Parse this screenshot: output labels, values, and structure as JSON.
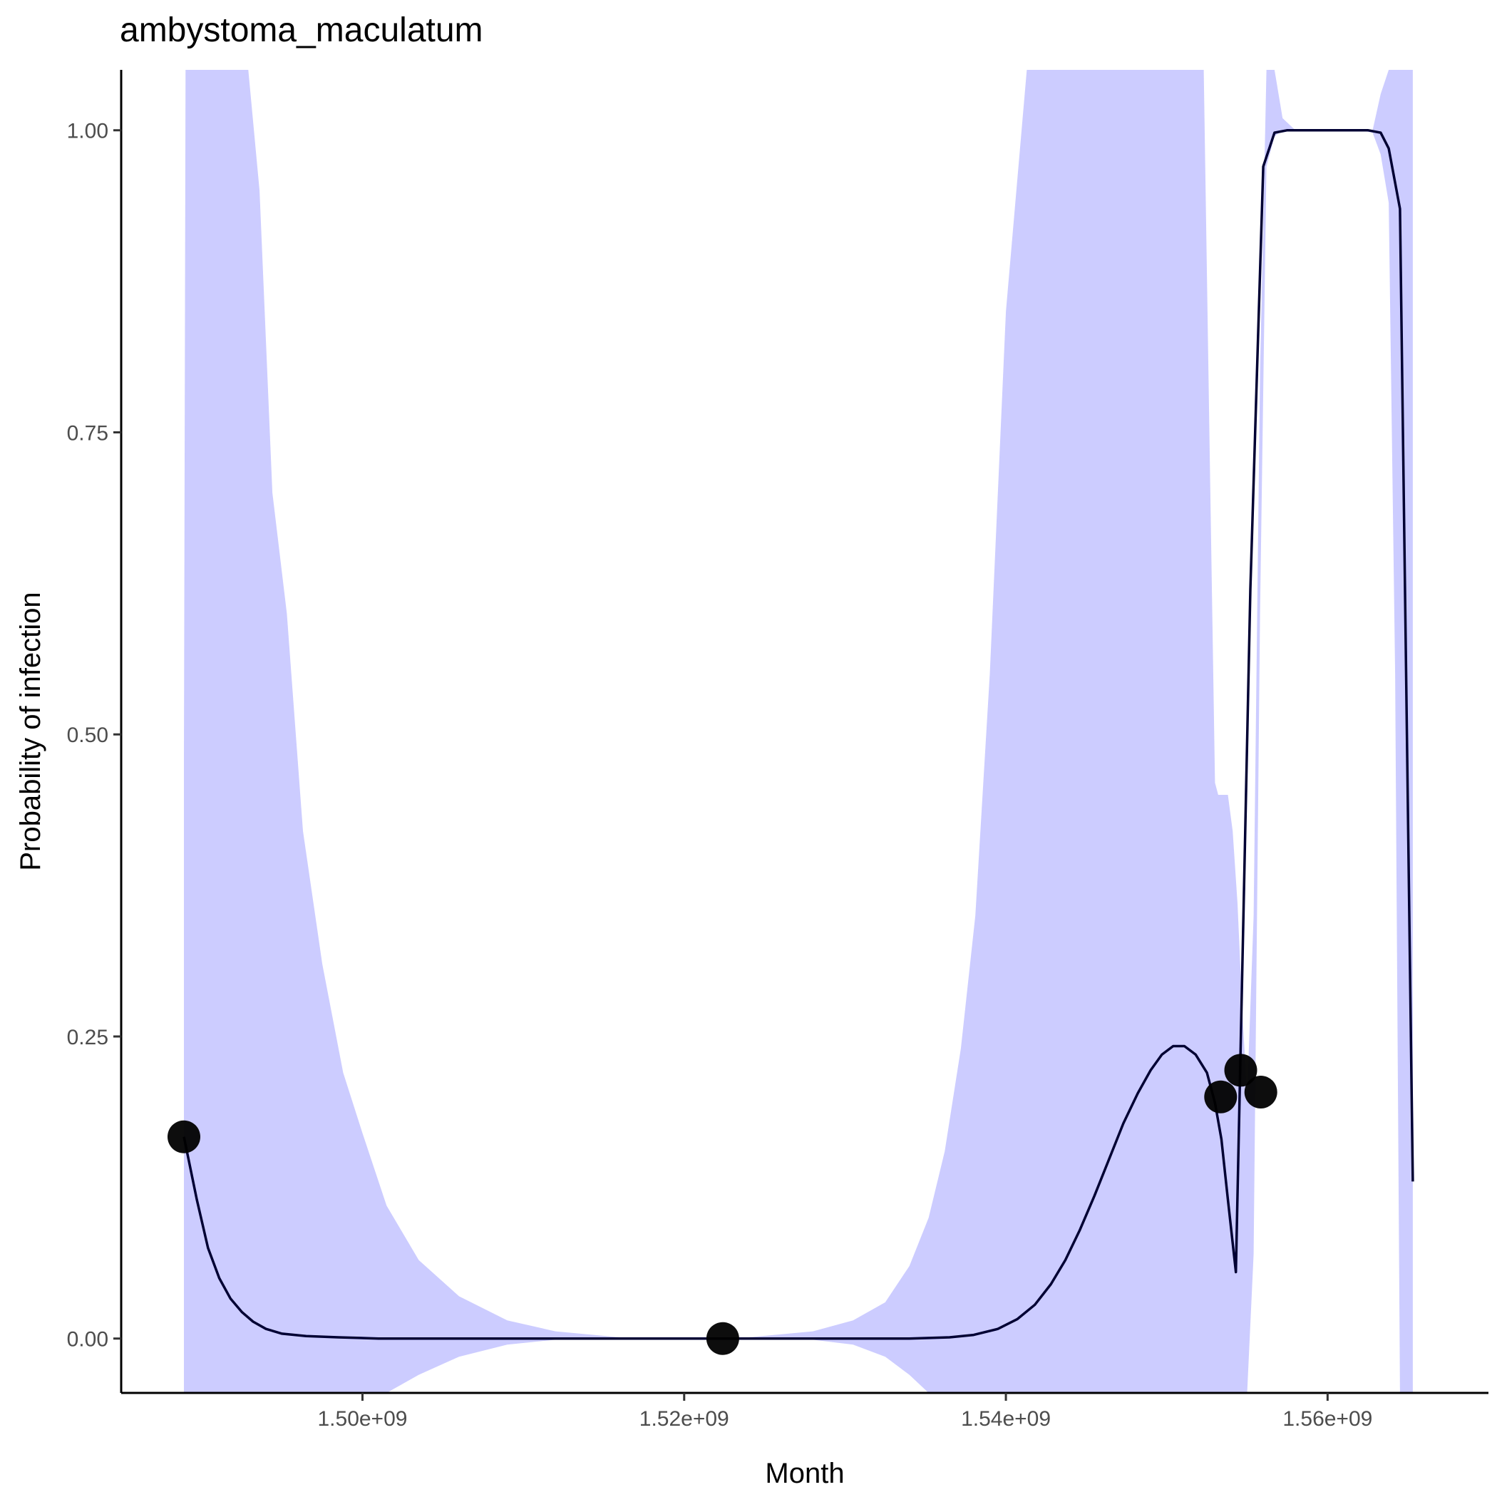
{
  "chart_data": {
    "type": "line",
    "title": "ambystoma_maculatum",
    "xlabel": "Month",
    "ylabel": "Probability of infection",
    "xlim": [
      1485000000,
      1570000000
    ],
    "ylim": [
      -0.045,
      1.05
    ],
    "x_ticks": [
      1500000000,
      1520000000,
      1540000000,
      1560000000
    ],
    "x_tick_labels": [
      "1.50e+09",
      "1.52e+09",
      "1.54e+09",
      "1.56e+09"
    ],
    "y_ticks": [
      0,
      0.25,
      0.5,
      0.75,
      1.0
    ],
    "y_tick_labels": [
      "0.00",
      "0.25",
      "0.50",
      "0.75",
      "1.00"
    ],
    "grid": false,
    "legend": "none",
    "colors": {
      "line": "#000033",
      "ribbon": "#CCCCFF",
      "points": "#000000"
    },
    "points": {
      "x": [
        1488900000,
        1522400000,
        1553350000,
        1554600000,
        1555850000
      ],
      "y": [
        0.167,
        0.0,
        0.2,
        0.222,
        0.204
      ]
    },
    "fit_line": {
      "x": [
        1488900000,
        1489700000,
        1490400000,
        1491100000,
        1491800000,
        1492500000,
        1493200000,
        1494000000,
        1495000000,
        1496500000,
        1498500000,
        1501000000,
        1510000000,
        1520000000,
        1530000000,
        1534000000,
        1536500000,
        1538000000,
        1539500000,
        1540700000,
        1541800000,
        1542800000,
        1543700000,
        1544600000,
        1545500000,
        1546400000,
        1547300000,
        1548200000,
        1549000000,
        1549700000,
        1550400000,
        1551100000,
        1551800000,
        1552500000,
        1553000000,
        1553400000,
        1553800000,
        1554300000,
        1555200000,
        1556000000,
        1556700000,
        1557500000,
        1560000000,
        1562500000,
        1563300000,
        1563800000,
        1564500000,
        1565300000
      ],
      "y": [
        0.167,
        0.115,
        0.075,
        0.05,
        0.033,
        0.022,
        0.014,
        0.008,
        0.004,
        0.002,
        0.001,
        0.0,
        0.0,
        0.0,
        0.0,
        0.0,
        0.001,
        0.003,
        0.008,
        0.016,
        0.028,
        0.045,
        0.065,
        0.09,
        0.118,
        0.148,
        0.178,
        0.203,
        0.222,
        0.235,
        0.242,
        0.242,
        0.235,
        0.22,
        0.195,
        0.165,
        0.115,
        0.055,
        0.62,
        0.97,
        0.998,
        1.0,
        1.0,
        1.0,
        0.998,
        0.985,
        0.935,
        0.13
      ]
    },
    "ribbon": {
      "x": [
        1488900000,
        1489000000,
        1490500000,
        1491500000,
        1492200000,
        1492900000,
        1493600000,
        1494400000,
        1495300000,
        1496300000,
        1497500000,
        1498800000,
        1500000000,
        1501500000,
        1503500000,
        1506000000,
        1509000000,
        1512000000,
        1516000000,
        1520000000,
        1524000000,
        1528000000,
        1530500000,
        1532500000,
        1534000000,
        1535200000,
        1536200000,
        1537200000,
        1538100000,
        1539000000,
        1540000000,
        1541300000,
        1543000000,
        1545500000,
        1547500000,
        1549000000,
        1550300000,
        1551500000,
        1552300000,
        1552700000,
        1553000000,
        1553200000,
        1553400000,
        1553800000,
        1554100000,
        1554400000,
        1554700000,
        1555000000,
        1555400000,
        1555800000,
        1556200000,
        1556700000,
        1557200000,
        1558000000,
        1560000000,
        1562000000,
        1562800000,
        1563300000,
        1563800000,
        1564200000,
        1564500000,
        1564900000,
        1565300000
      ],
      "lower": [
        -0.045,
        -0.045,
        -0.045,
        -0.045,
        -0.045,
        -0.045,
        -0.045,
        -0.045,
        -0.045,
        -0.045,
        -0.045,
        -0.045,
        -0.045,
        -0.045,
        -0.03,
        -0.015,
        -0.005,
        -0.001,
        0.0,
        0.0,
        0.0,
        -0.001,
        -0.005,
        -0.015,
        -0.03,
        -0.045,
        -0.045,
        -0.045,
        -0.045,
        -0.045,
        -0.045,
        -0.045,
        -0.045,
        -0.045,
        -0.045,
        -0.045,
        -0.045,
        -0.045,
        -0.045,
        -0.045,
        -0.045,
        -0.045,
        -0.045,
        -0.045,
        -0.045,
        -0.045,
        -0.045,
        -0.045,
        0.07,
        0.6,
        0.97,
        0.995,
        1.0,
        1.0,
        1.0,
        1.0,
        0.998,
        0.98,
        0.94,
        0.55,
        -0.045,
        -0.045,
        -0.045
      ],
      "upper": [
        0.48,
        1.05,
        1.05,
        1.05,
        1.05,
        1.05,
        0.95,
        0.7,
        0.6,
        0.42,
        0.31,
        0.22,
        0.17,
        0.11,
        0.065,
        0.035,
        0.015,
        0.006,
        0.001,
        0.0,
        0.001,
        0.006,
        0.015,
        0.03,
        0.06,
        0.1,
        0.155,
        0.24,
        0.35,
        0.55,
        0.85,
        1.05,
        1.05,
        1.05,
        1.05,
        1.05,
        1.05,
        1.05,
        1.05,
        0.71,
        0.46,
        0.45,
        0.45,
        0.45,
        0.42,
        0.36,
        0.27,
        0.2,
        0.35,
        0.8,
        1.05,
        1.05,
        1.01,
        1.0,
        1.0,
        1.0,
        1.0,
        1.03,
        1.05,
        1.05,
        1.05,
        1.05,
        1.05
      ]
    }
  }
}
